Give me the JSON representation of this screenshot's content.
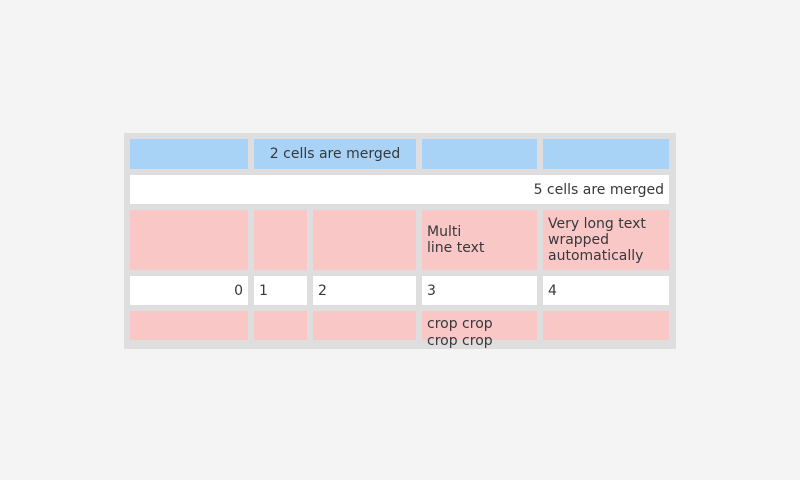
{
  "meta": {
    "description": "Table widget demo with merged and cropped cells"
  },
  "colors": {
    "page_background": "#f4f4f4",
    "table_gap_gray": "#dedede",
    "header_blue": "#a8d3f7",
    "row_pink": "#f9c8c6",
    "row_white": "#ffffff",
    "text": "#36383c"
  },
  "table": {
    "rows": [
      {
        "cells": [
          {
            "text": ""
          },
          {
            "text": "2 cells are merged"
          },
          {
            "text": ""
          },
          {
            "text": ""
          }
        ]
      },
      {
        "cells": [
          {
            "text": "5 cells are merged"
          }
        ]
      },
      {
        "cells": [
          {
            "text": ""
          },
          {
            "text": ""
          },
          {
            "text": ""
          },
          {
            "text": "Multi\nline text"
          },
          {
            "text": "Very long text wrapped automatically"
          }
        ]
      },
      {
        "cells": [
          {
            "text": "0"
          },
          {
            "text": "1"
          },
          {
            "text": "2"
          },
          {
            "text": "3"
          },
          {
            "text": "4"
          }
        ]
      },
      {
        "cells": [
          {
            "text": ""
          },
          {
            "text": ""
          },
          {
            "text": ""
          },
          {
            "text": "crop crop crop crop"
          },
          {
            "text": ""
          }
        ]
      }
    ]
  }
}
